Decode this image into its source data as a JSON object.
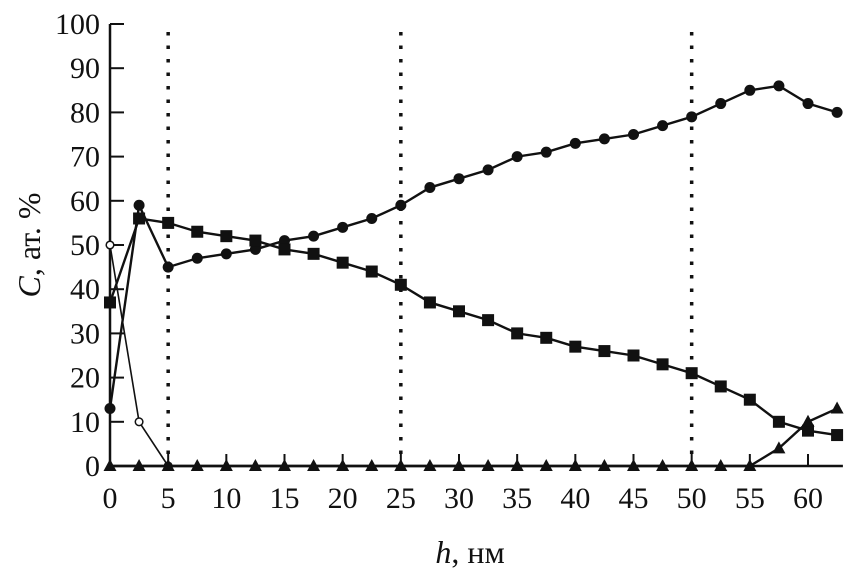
{
  "chart_data": {
    "type": "line",
    "title": "",
    "xlabel_var": "h",
    "xlabel_unit": ", нм",
    "ylabel_var": "C",
    "ylabel_unit": ", ат. %",
    "xlim": [
      0,
      63
    ],
    "ylim": [
      0,
      100
    ],
    "xticks": [
      0,
      5,
      10,
      15,
      20,
      25,
      30,
      35,
      40,
      45,
      50,
      55,
      60
    ],
    "yticks": [
      0,
      10,
      20,
      30,
      40,
      50,
      60,
      70,
      80,
      90,
      100
    ],
    "vlines": [
      5,
      25,
      50
    ],
    "grid": false,
    "series": [
      {
        "name": "filled-circles",
        "marker": "circle-filled",
        "x": [
          0,
          2.5,
          5,
          7.5,
          10,
          12.5,
          15,
          17.5,
          20,
          22.5,
          25,
          27.5,
          30,
          32.5,
          35,
          37.5,
          40,
          42.5,
          45,
          47.5,
          50,
          52.5,
          55,
          57.5,
          60,
          62.5
        ],
        "y": [
          13,
          59,
          45,
          47,
          48,
          49,
          51,
          52,
          54,
          56,
          59,
          63,
          65,
          67,
          70,
          71,
          73,
          74,
          75,
          77,
          79,
          82,
          85,
          86,
          82,
          80
        ]
      },
      {
        "name": "filled-squares",
        "marker": "square",
        "x": [
          0,
          2.5,
          5,
          7.5,
          10,
          12.5,
          15,
          17.5,
          20,
          22.5,
          25,
          27.5,
          30,
          32.5,
          35,
          37.5,
          40,
          42.5,
          45,
          47.5,
          50,
          52.5,
          55,
          57.5,
          60,
          62.5
        ],
        "y": [
          37,
          56,
          55,
          53,
          52,
          51,
          49,
          48,
          46,
          44,
          41,
          37,
          35,
          33,
          30,
          29,
          27,
          26,
          25,
          23,
          21,
          18,
          15,
          10,
          8,
          7
        ]
      },
      {
        "name": "open-circles",
        "marker": "circle-open",
        "x": [
          0,
          2.5,
          5
        ],
        "y": [
          50,
          10,
          0
        ]
      },
      {
        "name": "triangles",
        "marker": "triangle",
        "x": [
          0,
          2.5,
          5,
          7.5,
          10,
          12.5,
          15,
          17.5,
          20,
          22.5,
          25,
          27.5,
          30,
          32.5,
          35,
          37.5,
          40,
          42.5,
          45,
          47.5,
          50,
          52.5,
          55,
          57.5,
          60,
          62.5
        ],
        "y": [
          0,
          0,
          0,
          0,
          0,
          0,
          0,
          0,
          0,
          0,
          0,
          0,
          0,
          0,
          0,
          0,
          0,
          0,
          0,
          0,
          0,
          0,
          0,
          4,
          10,
          13
        ]
      }
    ]
  }
}
